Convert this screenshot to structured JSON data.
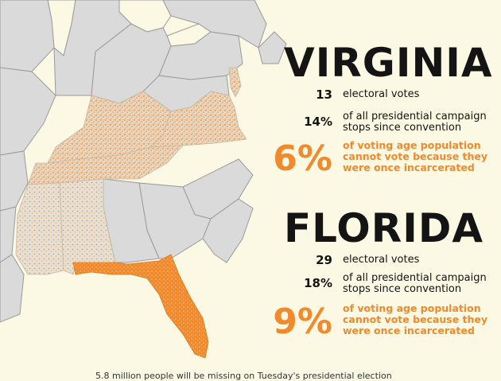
{
  "virginia": {
    "name": "VIRGINIA",
    "electoral_votes": "13",
    "electoral_votes_label": "electoral votes",
    "stops_pct": "14%",
    "stops_label": "of all presidential campaign stops since convention",
    "disenfranchised_pct": "6%",
    "disenfranchised_label": "of voting age population cannot vote because they were once incarcerated"
  },
  "florida": {
    "name": "FLORIDA",
    "electoral_votes": "29",
    "electoral_votes_label": "electoral votes",
    "stops_pct": "18%",
    "stops_label": "of all presidential campaign stops since convention",
    "disenfranchised_pct": "9%",
    "disenfranchised_label": "of voting age population cannot vote because they were once incarcerated"
  },
  "colors": {
    "background": "#fbf8e3",
    "state_fill": "#dadada",
    "state_border": "#9a9a9a",
    "highlight": "#f08a2c",
    "text": "#141414"
  },
  "footer": {
    "text": "5.8 million people will be missing on Tuesday's presidential election"
  }
}
